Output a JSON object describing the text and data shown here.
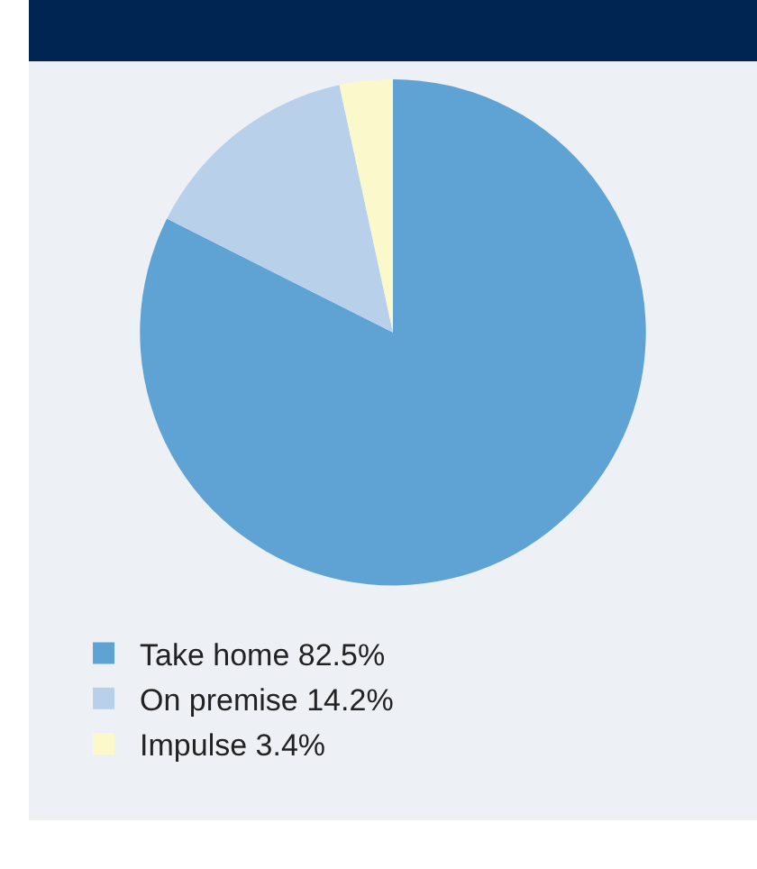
{
  "chart_data": {
    "type": "pie",
    "categories": [
      "Take home",
      "On premise",
      "Impulse"
    ],
    "values": [
      82.5,
      14.2,
      3.4
    ],
    "value_labels": [
      "82.5%",
      "14.2%",
      "3.4%"
    ],
    "colors": [
      "#5fa3d4",
      "#b8d0ea",
      "#fbf8cc"
    ],
    "legend": "bottom left"
  }
}
